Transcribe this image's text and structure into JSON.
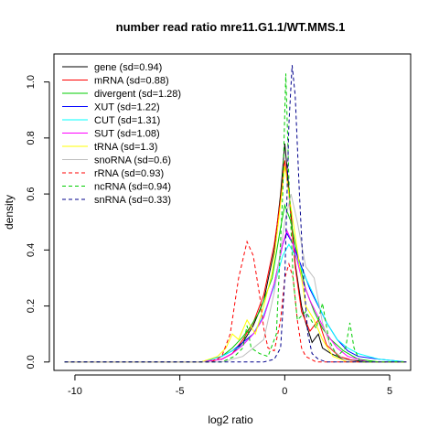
{
  "chart_data": {
    "type": "line",
    "title": "number read ratio mre11.G1.1/WT.MMS.1",
    "xlabel": "log2 ratio",
    "ylabel": "density",
    "xlim": [
      -11,
      6
    ],
    "ylim": [
      -0.03,
      1.1
    ],
    "x_ticks": [
      -10,
      -5,
      0,
      5
    ],
    "x_tick_labels": [
      "-10",
      "-5",
      "0",
      "5"
    ],
    "y_ticks": [
      0.0,
      0.2,
      0.4,
      0.6,
      0.8,
      1.0
    ],
    "y_tick_labels": [
      "0.0",
      "0.2",
      "0.4",
      "0.6",
      "0.8",
      "1.0"
    ],
    "legend_position": "top-left",
    "grid": false,
    "series": [
      {
        "name": "gene (sd=0.94)",
        "color": "#000000",
        "dash": "solid",
        "points": [
          [
            -10.5,
            0
          ],
          [
            -4,
            0
          ],
          [
            -3,
            0.01
          ],
          [
            -2.5,
            0.03
          ],
          [
            -2,
            0.07
          ],
          [
            -1.5,
            0.13
          ],
          [
            -1,
            0.22
          ],
          [
            -0.5,
            0.4
          ],
          [
            -0.2,
            0.6
          ],
          [
            0,
            0.78
          ],
          [
            0.2,
            0.62
          ],
          [
            0.5,
            0.35
          ],
          [
            0.8,
            0.2
          ],
          [
            1,
            0.14
          ],
          [
            1.3,
            0.07
          ],
          [
            1.6,
            0.1
          ],
          [
            1.8,
            0.05
          ],
          [
            2.2,
            0.03
          ],
          [
            2.8,
            0.01
          ],
          [
            4,
            0
          ],
          [
            5.8,
            0
          ]
        ]
      },
      {
        "name": "mRNA (sd=0.88)",
        "color": "#ff0000",
        "dash": "solid",
        "points": [
          [
            -10.5,
            0
          ],
          [
            -4,
            0
          ],
          [
            -3,
            0.01
          ],
          [
            -2.5,
            0.03
          ],
          [
            -2,
            0.08
          ],
          [
            -1.5,
            0.14
          ],
          [
            -1,
            0.24
          ],
          [
            -0.5,
            0.42
          ],
          [
            -0.2,
            0.58
          ],
          [
            0,
            0.72
          ],
          [
            0.2,
            0.6
          ],
          [
            0.5,
            0.34
          ],
          [
            0.8,
            0.18
          ],
          [
            1.2,
            0.11
          ],
          [
            1.6,
            0.15
          ],
          [
            2,
            0.06
          ],
          [
            2.6,
            0.02
          ],
          [
            3.5,
            0
          ],
          [
            5.8,
            0
          ]
        ]
      },
      {
        "name": "divergent (sd=1.28)",
        "color": "#00cd00",
        "dash": "solid",
        "points": [
          [
            -10.5,
            0
          ],
          [
            -4,
            0
          ],
          [
            -3,
            0.02
          ],
          [
            -2.5,
            0.05
          ],
          [
            -2,
            0.09
          ],
          [
            -1.6,
            0.13
          ],
          [
            -1.2,
            0.18
          ],
          [
            -0.6,
            0.3
          ],
          [
            -0.2,
            0.48
          ],
          [
            0,
            0.56
          ],
          [
            0.3,
            0.5
          ],
          [
            0.6,
            0.38
          ],
          [
            1,
            0.26
          ],
          [
            1.4,
            0.18
          ],
          [
            1.8,
            0.12
          ],
          [
            2.2,
            0.08
          ],
          [
            2.8,
            0.04
          ],
          [
            3.5,
            0.01
          ],
          [
            4.5,
            0
          ],
          [
            5.8,
            0
          ]
        ]
      },
      {
        "name": "XUT (sd=1.22)",
        "color": "#0000ff",
        "dash": "solid",
        "points": [
          [
            -10.5,
            0
          ],
          [
            -4,
            0
          ],
          [
            -3,
            0.02
          ],
          [
            -2.5,
            0.04
          ],
          [
            -2,
            0.07
          ],
          [
            -1.5,
            0.1
          ],
          [
            -1,
            0.16
          ],
          [
            -0.5,
            0.28
          ],
          [
            -0.1,
            0.42
          ],
          [
            0.1,
            0.46
          ],
          [
            0.4,
            0.42
          ],
          [
            0.8,
            0.34
          ],
          [
            1.2,
            0.26
          ],
          [
            1.6,
            0.2
          ],
          [
            2,
            0.14
          ],
          [
            2.5,
            0.08
          ],
          [
            3,
            0.04
          ],
          [
            3.5,
            0.02
          ],
          [
            4.5,
            0.01
          ],
          [
            5.8,
            0
          ]
        ]
      },
      {
        "name": "CUT (sd=1.31)",
        "color": "#00ffff",
        "dash": "solid",
        "points": [
          [
            -10.5,
            0
          ],
          [
            -4,
            0
          ],
          [
            -3,
            0.02
          ],
          [
            -2.5,
            0.04
          ],
          [
            -2,
            0.06
          ],
          [
            -1.5,
            0.1
          ],
          [
            -1,
            0.17
          ],
          [
            -0.5,
            0.27
          ],
          [
            -0.1,
            0.38
          ],
          [
            0.2,
            0.42
          ],
          [
            0.5,
            0.38
          ],
          [
            1,
            0.3
          ],
          [
            1.5,
            0.22
          ],
          [
            2,
            0.14
          ],
          [
            2.5,
            0.08
          ],
          [
            3,
            0.05
          ],
          [
            3.5,
            0.03
          ],
          [
            4.5,
            0.01
          ],
          [
            5.8,
            0
          ]
        ]
      },
      {
        "name": "SUT (sd=1.08)",
        "color": "#ff00ff",
        "dash": "solid",
        "points": [
          [
            -10.5,
            0
          ],
          [
            -4,
            0
          ],
          [
            -3,
            0.01
          ],
          [
            -2.5,
            0.03
          ],
          [
            -2,
            0.06
          ],
          [
            -1.5,
            0.1
          ],
          [
            -1,
            0.16
          ],
          [
            -0.5,
            0.28
          ],
          [
            -0.1,
            0.42
          ],
          [
            0.1,
            0.47
          ],
          [
            0.4,
            0.42
          ],
          [
            0.8,
            0.3
          ],
          [
            1.2,
            0.22
          ],
          [
            1.6,
            0.16
          ],
          [
            2,
            0.1
          ],
          [
            2.5,
            0.05
          ],
          [
            3,
            0.02
          ],
          [
            4,
            0
          ],
          [
            5.8,
            0
          ]
        ]
      },
      {
        "name": "tRNA (sd=1.3)",
        "color": "#ffff00",
        "dash": "solid",
        "points": [
          [
            -10.5,
            0
          ],
          [
            -4,
            0
          ],
          [
            -3.2,
            0.02
          ],
          [
            -2.8,
            0.05
          ],
          [
            -2.5,
            0.1
          ],
          [
            -2.2,
            0.08
          ],
          [
            -1.8,
            0.15
          ],
          [
            -1.4,
            0.1
          ],
          [
            -1,
            0.2
          ],
          [
            -0.6,
            0.32
          ],
          [
            -0.3,
            0.5
          ],
          [
            0,
            0.7
          ],
          [
            0.3,
            0.55
          ],
          [
            0.6,
            0.4
          ],
          [
            1,
            0.2
          ],
          [
            1.4,
            0.15
          ],
          [
            1.8,
            0.08
          ],
          [
            2.3,
            0.02
          ],
          [
            3,
            0
          ],
          [
            5.8,
            0
          ]
        ]
      },
      {
        "name": "snoRNA (sd=0.6)",
        "color": "#bebebe",
        "dash": "solid",
        "points": [
          [
            -10.5,
            0
          ],
          [
            -3,
            0
          ],
          [
            -2,
            0.02
          ],
          [
            -1,
            0.08
          ],
          [
            -0.5,
            0.25
          ],
          [
            0,
            0.5
          ],
          [
            0.3,
            0.6
          ],
          [
            0.6,
            0.5
          ],
          [
            1,
            0.34
          ],
          [
            1.4,
            0.3
          ],
          [
            1.8,
            0.14
          ],
          [
            2.2,
            0.05
          ],
          [
            2.8,
            0.01
          ],
          [
            3.5,
            0
          ],
          [
            5.8,
            0
          ]
        ]
      },
      {
        "name": "rRNA (sd=0.93)",
        "color": "#ff0000",
        "dash": "dashed",
        "points": [
          [
            -10.5,
            0
          ],
          [
            -3.5,
            0
          ],
          [
            -3,
            0.02
          ],
          [
            -2.6,
            0.1
          ],
          [
            -2.2,
            0.3
          ],
          [
            -1.8,
            0.43
          ],
          [
            -1.5,
            0.38
          ],
          [
            -1.2,
            0.24
          ],
          [
            -1,
            0.12
          ],
          [
            -0.8,
            0.05
          ],
          [
            -0.5,
            0.04
          ],
          [
            -0.2,
            0.15
          ],
          [
            0,
            0.3
          ],
          [
            0.2,
            0.35
          ],
          [
            0.4,
            0.3
          ],
          [
            0.6,
            0.15
          ],
          [
            0.8,
            0.05
          ],
          [
            1,
            0.02
          ],
          [
            1.5,
            0
          ],
          [
            5.8,
            0
          ]
        ]
      },
      {
        "name": "ncRNA (sd=0.94)",
        "color": "#00cd00",
        "dash": "dashed",
        "points": [
          [
            -10.5,
            0
          ],
          [
            -3,
            0
          ],
          [
            -2.4,
            0.02
          ],
          [
            -2,
            0.05
          ],
          [
            -1.8,
            0.13
          ],
          [
            -1.6,
            0.05
          ],
          [
            -1.2,
            0.03
          ],
          [
            -0.8,
            0.02
          ],
          [
            -0.4,
            0.1
          ],
          [
            -0.1,
            0.6
          ],
          [
            0.05,
            1.03
          ],
          [
            0.2,
            0.65
          ],
          [
            0.4,
            0.3
          ],
          [
            0.6,
            0.15
          ],
          [
            1,
            0.18
          ],
          [
            1.5,
            0.12
          ],
          [
            1.8,
            0.21
          ],
          [
            2.1,
            0.08
          ],
          [
            2.5,
            0.02
          ],
          [
            2.9,
            0.05
          ],
          [
            3.1,
            0.14
          ],
          [
            3.3,
            0.05
          ],
          [
            3.6,
            0
          ],
          [
            5.8,
            0
          ]
        ]
      },
      {
        "name": "snRNA (sd=0.33)",
        "color": "#00008b",
        "dash": "dashed",
        "points": [
          [
            -10.5,
            0
          ],
          [
            -1,
            0
          ],
          [
            -0.5,
            0.01
          ],
          [
            -0.2,
            0.05
          ],
          [
            0,
            0.3
          ],
          [
            0.2,
            0.85
          ],
          [
            0.35,
            1.06
          ],
          [
            0.5,
            0.95
          ],
          [
            0.7,
            0.6
          ],
          [
            0.9,
            0.3
          ],
          [
            1.1,
            0.1
          ],
          [
            1.3,
            0.03
          ],
          [
            1.6,
            0.01
          ],
          [
            2,
            0
          ],
          [
            5.8,
            0
          ]
        ]
      }
    ]
  }
}
